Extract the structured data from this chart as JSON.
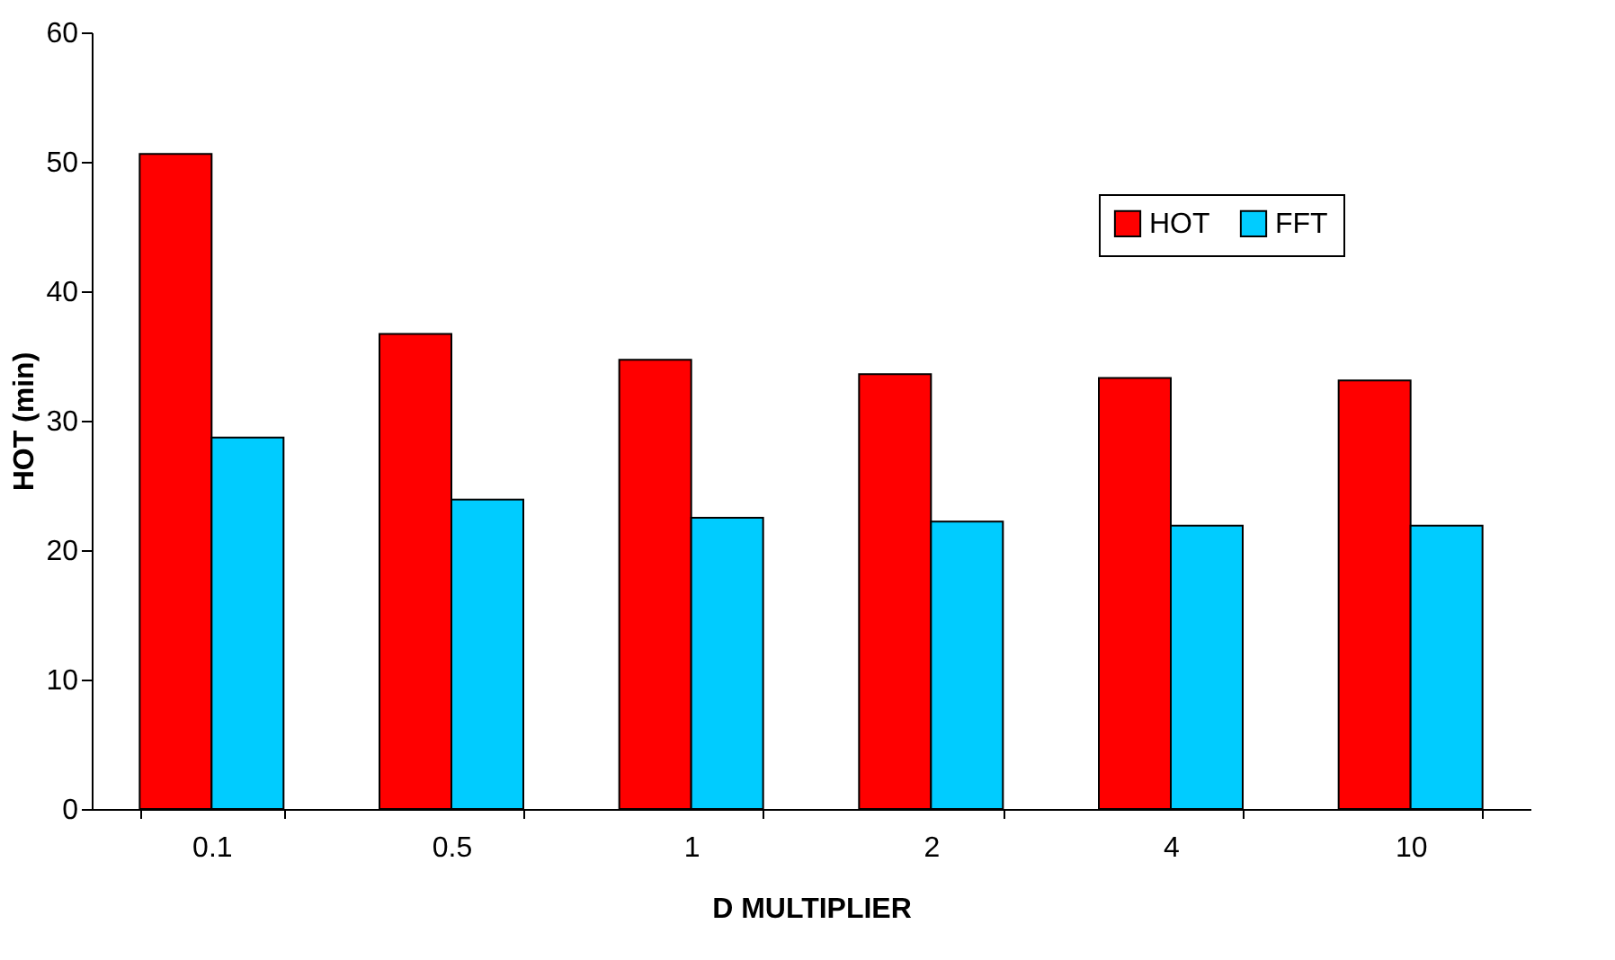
{
  "chart_data": {
    "type": "bar",
    "xlabel": "D MULTIPLIER",
    "ylabel": "HOT (min)",
    "categories": [
      "0.1",
      "0.5",
      "1",
      "2",
      "4",
      "10"
    ],
    "series": [
      {
        "name": "HOT",
        "color": "#ff0000",
        "values": [
          50.6,
          36.7,
          34.7,
          33.6,
          33.3,
          33.1
        ]
      },
      {
        "name": "FFT",
        "color": "#00ccff",
        "values": [
          28.7,
          23.9,
          22.5,
          22.2,
          21.9,
          21.9
        ]
      }
    ],
    "ylim": [
      0,
      60
    ],
    "yticks": [
      0,
      10,
      20,
      30,
      40,
      50,
      60
    ],
    "grid": false,
    "legend": "top right"
  }
}
